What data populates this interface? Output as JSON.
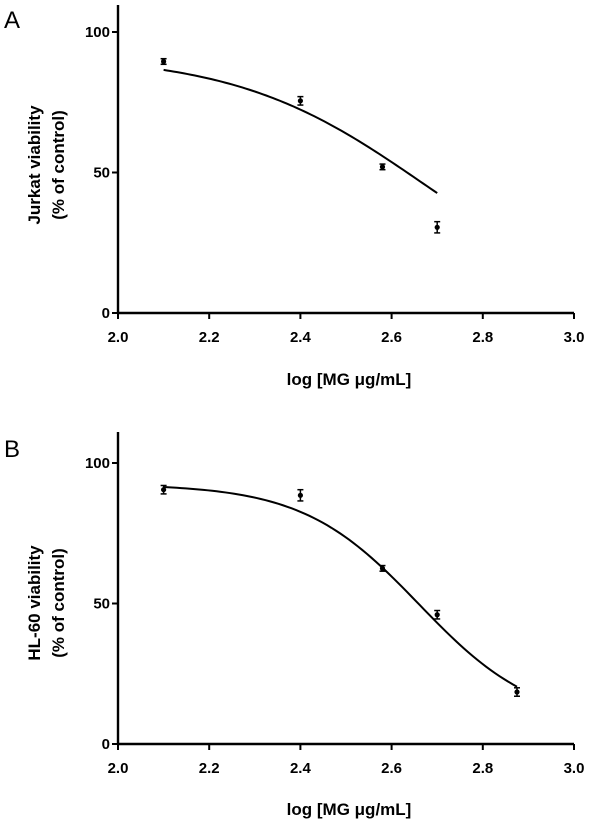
{
  "chart_data": [
    {
      "type": "line",
      "panel_label": "A",
      "title": "",
      "xlabel": "log [MG μg/mL]",
      "ylabel": [
        "Jurkat viability",
        "(% of control)"
      ],
      "xlim": [
        2.0,
        3.0
      ],
      "ylim": [
        0,
        100
      ],
      "xticks": [
        "2.0",
        "2.2",
        "2.4",
        "2.6",
        "2.8",
        "3.0"
      ],
      "yticks": [
        "0",
        "50",
        "100"
      ],
      "grid": false,
      "series": [
        {
          "x": [
            2.1,
            2.4,
            2.58,
            2.7
          ],
          "y": [
            89.5,
            75.5,
            52,
            30.5
          ],
          "error": [
            1,
            1.5,
            1,
            2
          ],
          "fit": {
            "top": 92,
            "bottom": 0,
            "logIC50": 2.67,
            "hill": -2.1
          }
        }
      ]
    },
    {
      "type": "line",
      "panel_label": "B",
      "title": "",
      "xlabel": "log [MG μg/mL]",
      "ylabel": [
        "HL-60 viability",
        "(% of control)"
      ],
      "xlim": [
        2.0,
        3.0
      ],
      "ylim": [
        0,
        100
      ],
      "xticks": [
        "2.0",
        "2.2",
        "2.4",
        "2.6",
        "2.8",
        "3.0"
      ],
      "yticks": [
        "0",
        "50",
        "100"
      ],
      "grid": false,
      "series": [
        {
          "x": [
            2.1,
            2.4,
            2.58,
            2.7,
            2.875
          ],
          "y": [
            90.5,
            88.5,
            62.5,
            46,
            18.5
          ],
          "error": [
            1.5,
            2,
            1,
            1.5,
            1.5
          ],
          "fit": {
            "top": 92.5,
            "bottom": 7,
            "logIC50": 2.66,
            "hill": -3.4
          }
        }
      ]
    }
  ]
}
